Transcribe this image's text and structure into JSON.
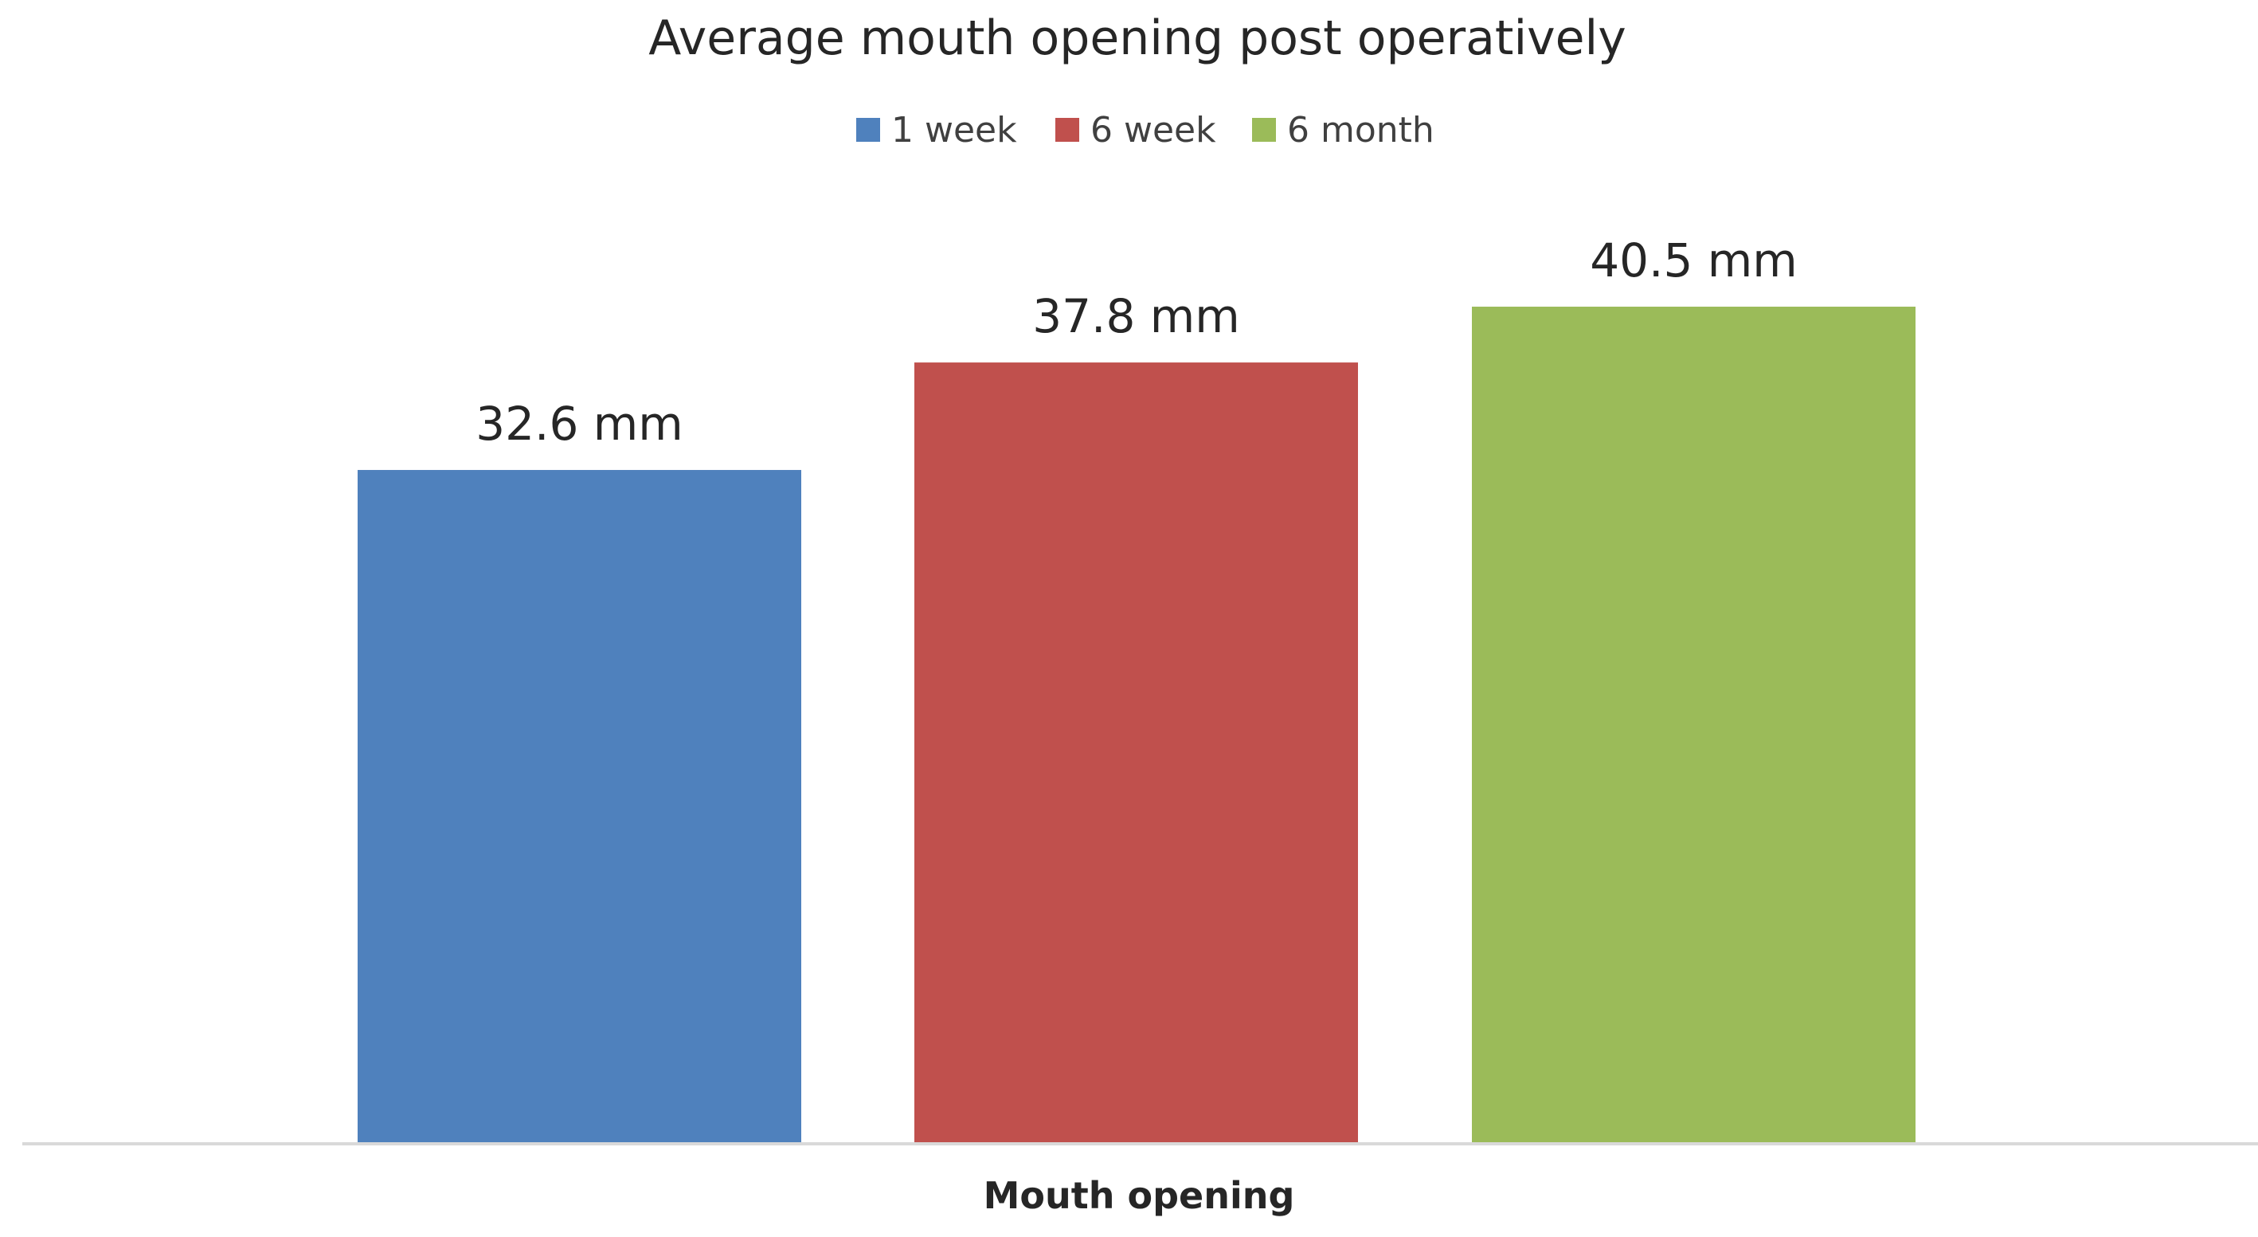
{
  "chart_data": {
    "type": "bar",
    "title": "Average mouth opening post operatively",
    "xlabel": "Mouth opening",
    "ylabel": "",
    "categories": [
      "Mouth opening"
    ],
    "series": [
      {
        "name": "1 week",
        "values": [
          32.6
        ],
        "color": "#4F81BD",
        "label": "32.6 mm"
      },
      {
        "name": "6 week",
        "values": [
          37.8
        ],
        "color": "#C0504D",
        "label": "37.8 mm"
      },
      {
        "name": "6 month",
        "values": [
          40.5
        ],
        "color": "#9BBB59",
        "label": "40.5 mm"
      }
    ],
    "ylim": [
      0,
      50
    ],
    "grid": false,
    "legend_position": "top",
    "axis_color": "#D9D9D9",
    "text_color": "#262626"
  }
}
